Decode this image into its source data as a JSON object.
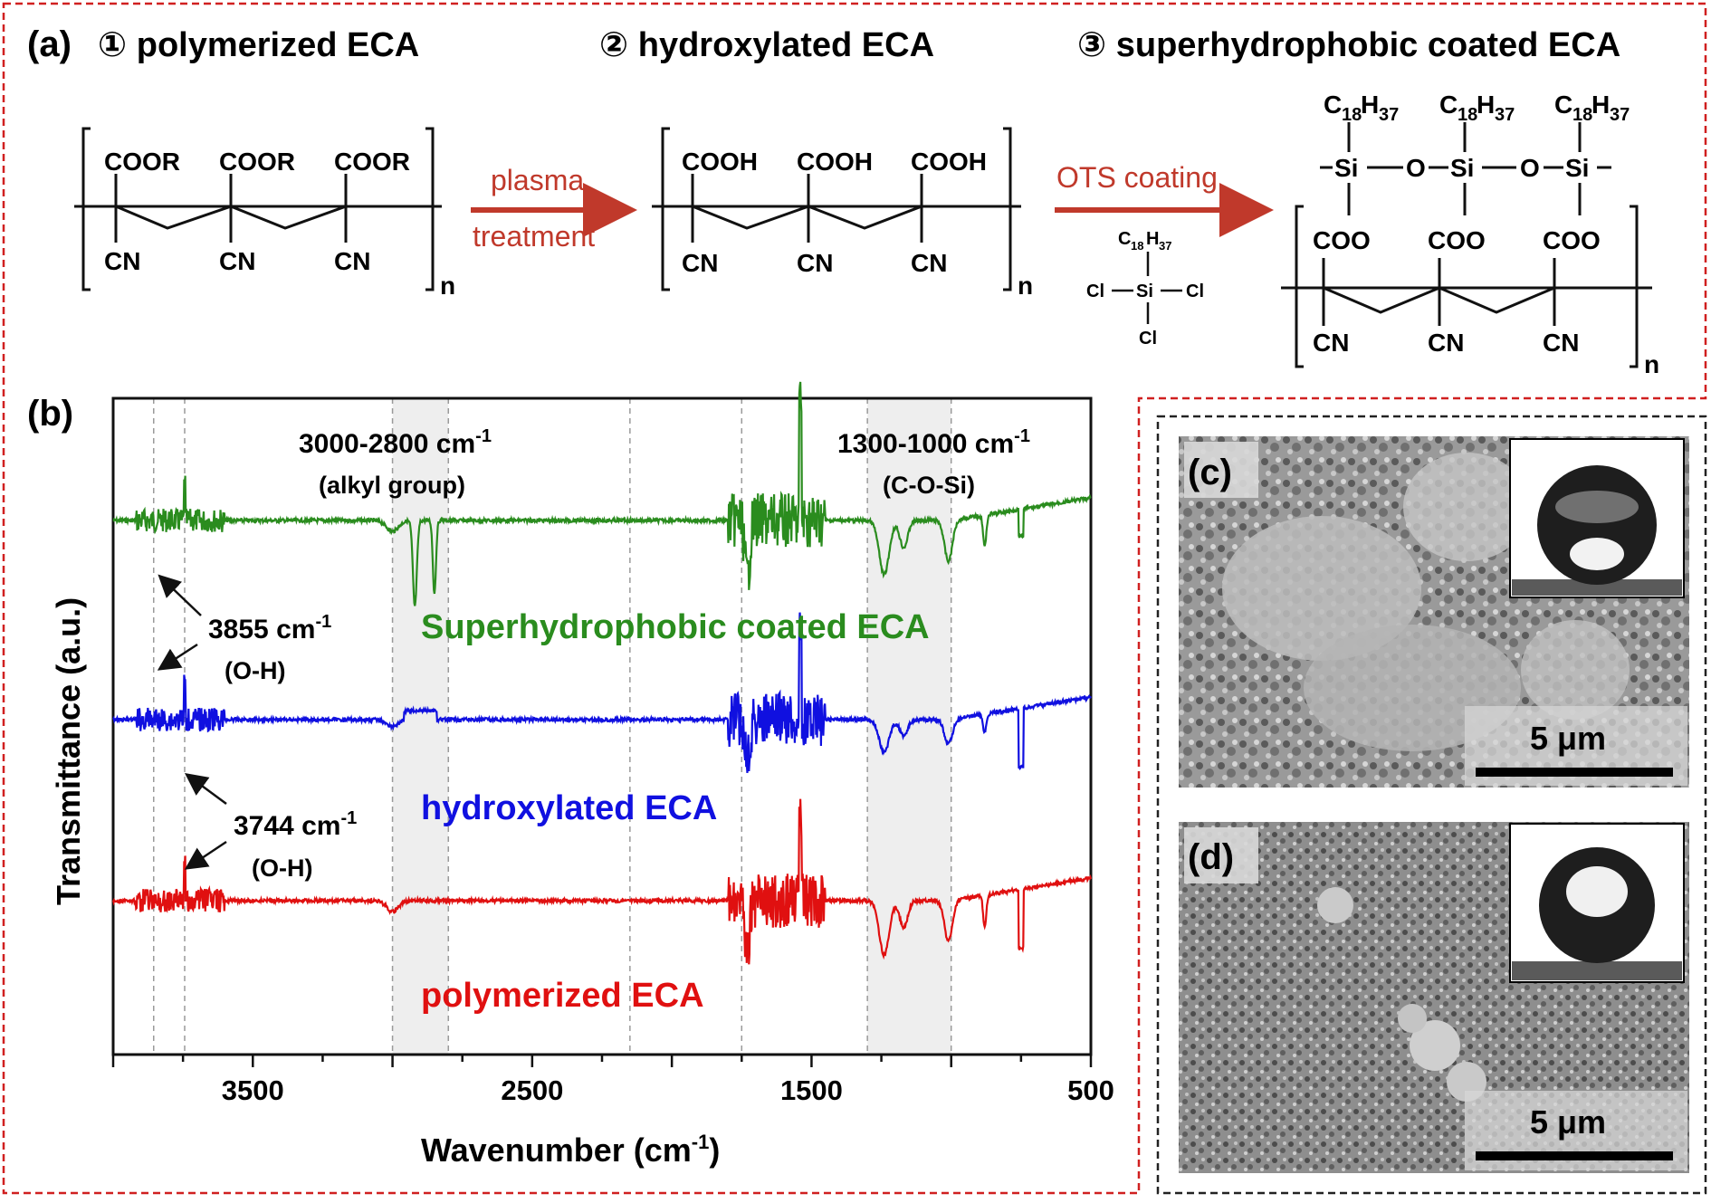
{
  "panel_a": {
    "tag": "(a)",
    "stage1_title": "① polymerized ECA",
    "stage2_title": "② hydroxylated ECA",
    "stage3_title": "③ superhydrophobic coated ECA",
    "arrow1_top": "plasma",
    "arrow1_bottom": "treatment",
    "arrow2_top": "OTS coating",
    "group_coor": "COOR",
    "group_cooh": "COOH",
    "group_coo": "COO",
    "group_cn": "CN",
    "repeat_n": "n",
    "si": "Si",
    "o": "O",
    "cl": "Cl",
    "alkyl": "C",
    "alkyl_sub1": "18",
    "alkyl_h": "H",
    "alkyl_sub2": "37"
  },
  "panel_b": {
    "tag": "(b)",
    "ylabel": "Transmittance (a.u.)",
    "xlabel_main": "Wavenumber (cm",
    "xlabel_sup": "-1",
    "xlabel_end": ")",
    "band1_title": "3000-2800 cm",
    "band1_sup": "-1",
    "band1_sub": "(alkyl group)",
    "band2_title": "1300-1000 cm",
    "band2_sup": "-1",
    "band2_sub": "(C-O-Si)",
    "peak1_label": "3855 cm",
    "peak1_sup": "-1",
    "peak1_sub": "(O-H)",
    "peak2_label": "3744 cm",
    "peak2_sup": "-1",
    "peak2_sub": "(O-H)",
    "series_green": "Superhydrophobic coated ECA",
    "series_blue": "hydroxylated ECA",
    "series_red": "polymerized ECA",
    "colors": {
      "green": "#2a8c1e",
      "blue": "#1010e0",
      "red": "#e01010",
      "dash_frame": "#d02020"
    }
  },
  "chart_data": {
    "type": "line",
    "xlabel": "Wavenumber (cm-1)",
    "ylabel": "Transmittance (a.u.)",
    "xlim": [
      4000,
      500
    ],
    "x_ticks": [
      3500,
      2500,
      1500,
      500
    ],
    "reversed_x": true,
    "y_ticks_shown": false,
    "shaded_bands": [
      [
        3000,
        2800
      ],
      [
        1300,
        1000
      ]
    ],
    "reference_lines": [
      3855,
      3744,
      3000,
      2800,
      2150,
      1750,
      1300,
      1000
    ],
    "series": [
      {
        "name": "Superhydrophobic coated ECA",
        "color": "#2a8c1e"
      },
      {
        "name": "hydroxylated ECA",
        "color": "#1010e0"
      },
      {
        "name": "polymerized ECA",
        "color": "#e01010"
      }
    ],
    "annotated_peaks": [
      {
        "x": 3855,
        "label": "3855 cm-1 (O-H)"
      },
      {
        "x": 3744,
        "label": "3744 cm-1 (O-H)"
      }
    ]
  },
  "panel_c": {
    "tag": "(c)",
    "scalebar": "5 μm"
  },
  "panel_d": {
    "tag": "(d)",
    "scalebar": "5 μm"
  }
}
